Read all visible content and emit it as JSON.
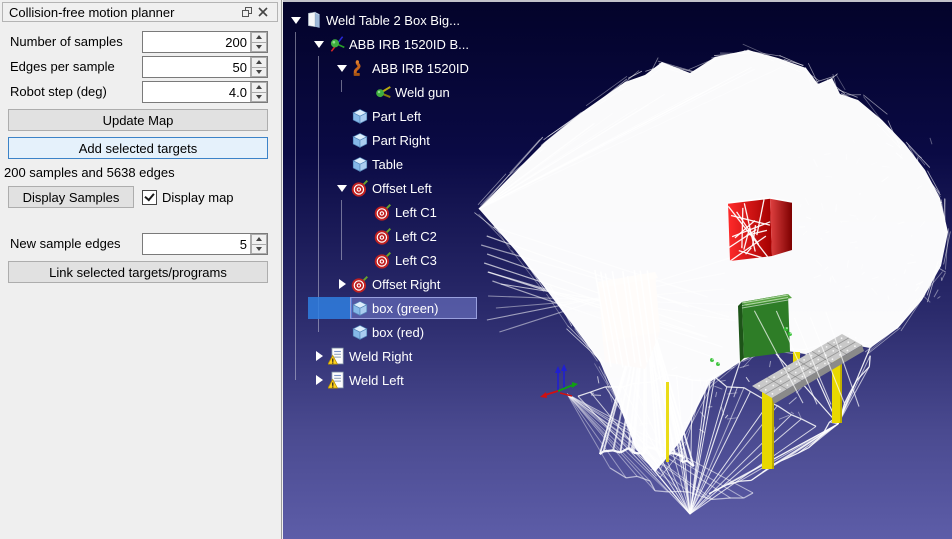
{
  "panel": {
    "title": "Collision-free motion planner",
    "fields": [
      {
        "label": "Number of samples",
        "value": "200"
      },
      {
        "label": "Edges per sample",
        "value": "50"
      },
      {
        "label": "Robot step (deg)",
        "value": "4.0"
      }
    ],
    "update_map_label": "Update Map",
    "add_targets_label": "Add selected targets",
    "status_text": "200 samples and 5638 edges",
    "display_samples_label": "Display Samples",
    "display_map_label": "Display map",
    "display_map_checked": true,
    "new_sample_edges_label": "New sample edges",
    "new_sample_edges_value": "5",
    "link_label": "Link selected targets/programs"
  },
  "tree": {
    "items": [
      {
        "label": "Weld Table 2 Box Big...",
        "level": 0,
        "icon": "station",
        "expand": "open"
      },
      {
        "label": "ABB IRB 1520ID B...",
        "level": 1,
        "icon": "frame",
        "expand": "open"
      },
      {
        "label": "ABB IRB 1520ID",
        "level": 2,
        "icon": "robot",
        "expand": "open"
      },
      {
        "label": "Weld gun",
        "level": 3,
        "icon": "weldgun",
        "expand": "none"
      },
      {
        "label": "Part Left",
        "level": 2,
        "icon": "cube",
        "expand": "none"
      },
      {
        "label": "Part Right",
        "level": 2,
        "icon": "cube",
        "expand": "none"
      },
      {
        "label": "Table",
        "level": 2,
        "icon": "cube",
        "expand": "none"
      },
      {
        "label": "Offset Left",
        "level": 2,
        "icon": "target",
        "expand": "open"
      },
      {
        "label": "Left C1",
        "level": 3,
        "icon": "target",
        "expand": "none"
      },
      {
        "label": "Left C2",
        "level": 3,
        "icon": "target",
        "expand": "none"
      },
      {
        "label": "Left C3",
        "level": 3,
        "icon": "target",
        "expand": "none"
      },
      {
        "label": "Offset Right",
        "level": 2,
        "icon": "target",
        "expand": "closed"
      },
      {
        "label": "box (green)",
        "level": 2,
        "icon": "cube",
        "expand": "none",
        "selected": true
      },
      {
        "label": "box (red)",
        "level": 2,
        "icon": "cube",
        "expand": "none"
      },
      {
        "label": "Weld Right",
        "level": 1,
        "icon": "program",
        "expand": "closed"
      },
      {
        "label": "Weld Left",
        "level": 1,
        "icon": "program",
        "expand": "closed"
      }
    ]
  },
  "viewport": {
    "bg_top": "#03032a",
    "bg_bottom": "#5d5da8",
    "mesh_color": "#ffffff",
    "objects": {
      "red_box": "#d80000",
      "green_box": "#2e7d27",
      "orange_box": "#d86a28",
      "table_top": "#c9c9c9",
      "table_legs": "#e8d800"
    }
  }
}
